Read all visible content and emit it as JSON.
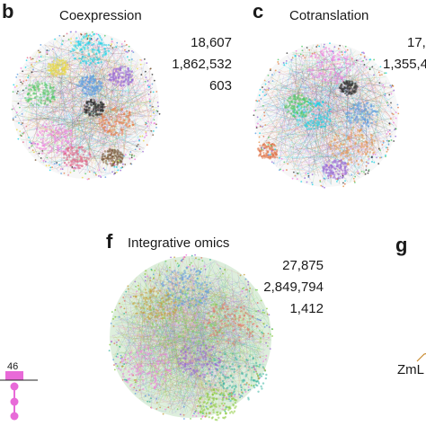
{
  "panels": {
    "b": {
      "letter": "b",
      "title": "Coexpression",
      "stats": [
        "18,607",
        "1,862,532",
        "603"
      ],
      "colors": [
        "#19d3e6",
        "#f07de0",
        "#55c86a",
        "#e6804a",
        "#5f9ce0",
        "#2f2f2f",
        "#9a6bd6",
        "#e8d84a",
        "#e06a8a",
        "#7a5a3a"
      ]
    },
    "c": {
      "letter": "c",
      "title": "Cotranslation",
      "stats": [
        "17,",
        "1,355,4",
        ""
      ],
      "colors": [
        "#f07de0",
        "#19d3e6",
        "#e6944a",
        "#5f9ce0",
        "#55c86a",
        "#e07a50",
        "#9a6bd6",
        "#3a3a3a"
      ]
    },
    "f": {
      "letter": "f",
      "title": "Integrative omics",
      "stats": [
        "27,875",
        "2,849,794",
        "1,412"
      ],
      "colors": [
        "#7fcf5a",
        "#f07de0",
        "#e07a6a",
        "#3bb5a0",
        "#5f9ce0",
        "#c7a040",
        "#8acb3a",
        "#9a6bd6"
      ]
    },
    "g": {
      "letter": "g",
      "label": "ZmL"
    },
    "left_fragment": {
      "number": "46",
      "accent": "#e86ad8"
    }
  }
}
